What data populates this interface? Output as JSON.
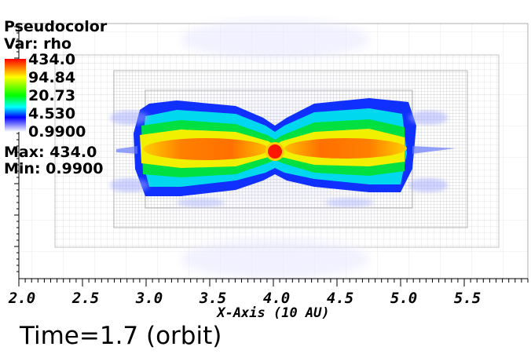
{
  "legend": {
    "title": "Pseudocolor",
    "var_label": "Var: rho",
    "colorbar_labels": [
      "434.0",
      "94.84",
      "20.73",
      "4.530",
      "0.9900"
    ],
    "max_label": "Max:  434.0",
    "min_label": "Min:  0.9900"
  },
  "time_label": "Time=1.7 (orbit)",
  "colors": {
    "colorbar": [
      "#ff0000",
      "#ffff00",
      "#00ff00",
      "#00ffff",
      "#0000ff",
      "#ffffff"
    ]
  },
  "chart_data": {
    "type": "heatmap",
    "variable": "rho",
    "xlabel": "X-Axis (10 AU)",
    "xticks": [
      "2.0",
      "2.5",
      "3.0",
      "3.5",
      "4.0",
      "4.5",
      "5.0",
      "5.5"
    ],
    "xlim": [
      2.0,
      6.0
    ],
    "color_scale": "log",
    "colorbar_ticks": [
      434.0,
      94.84,
      20.73,
      4.53,
      0.99
    ],
    "max": 434.0,
    "min": 0.99,
    "grid": true
  }
}
